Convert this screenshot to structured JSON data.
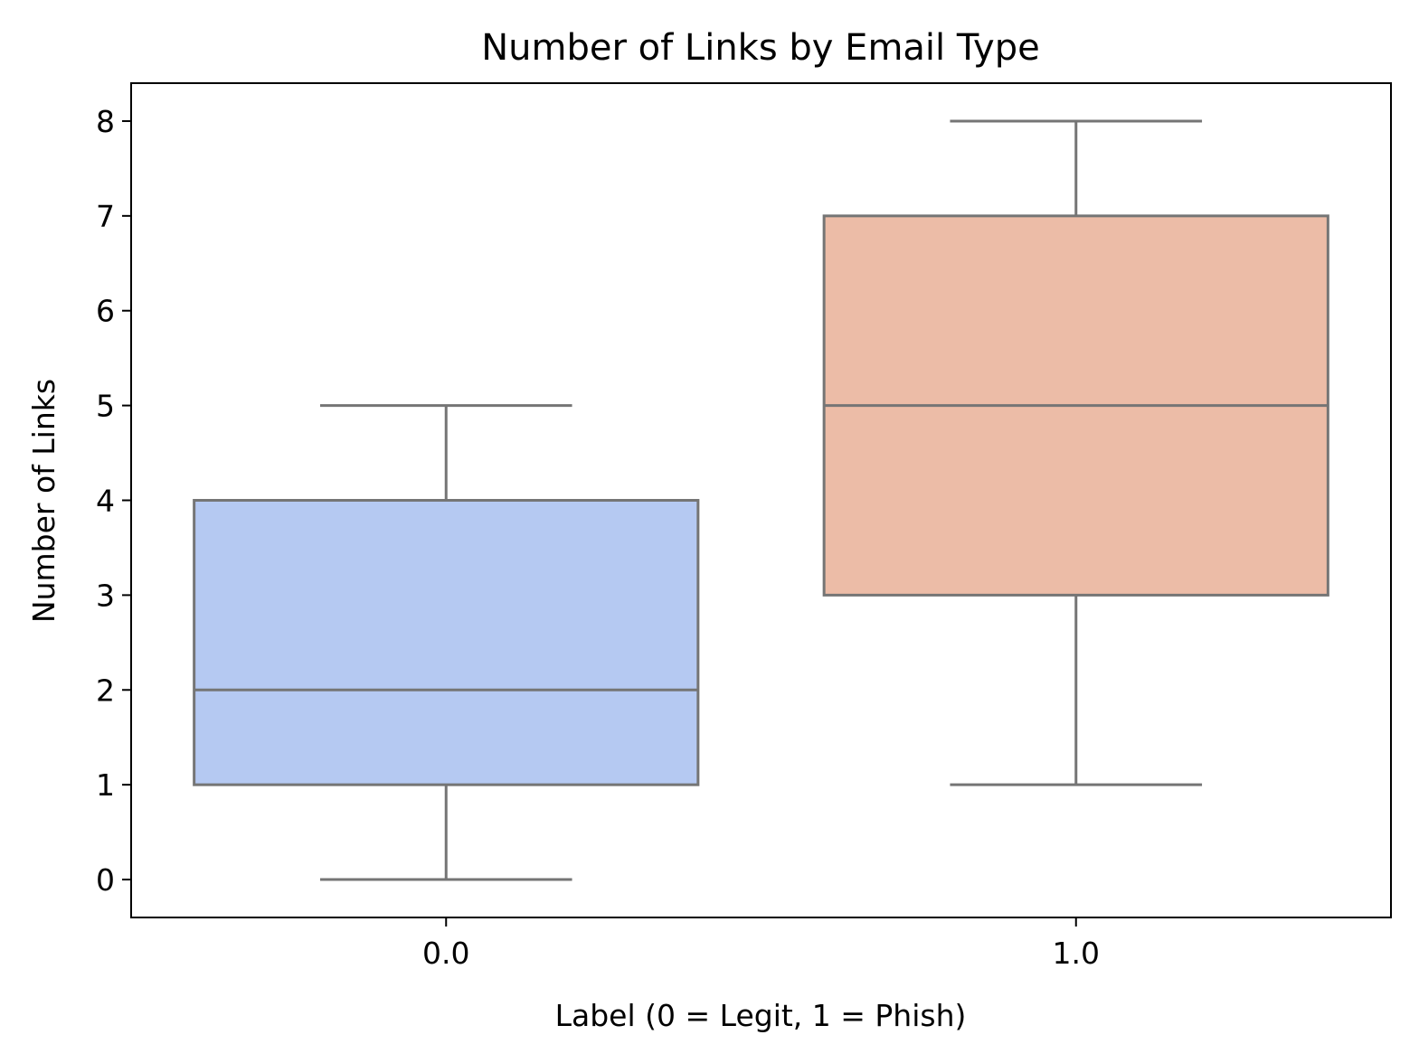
{
  "chart_data": {
    "type": "box",
    "title": "Number of Links by Email Type",
    "xlabel": "Label (0 = Legit, 1 = Phish)",
    "ylabel": "Number of Links",
    "categories": [
      "0.0",
      "1.0"
    ],
    "boxes": [
      {
        "category": "0.0",
        "whisker_low": 0,
        "q1": 1,
        "median": 2,
        "q3": 4,
        "whisker_high": 5,
        "color": "#b5c9f2"
      },
      {
        "category": "1.0",
        "whisker_low": 1,
        "q1": 3,
        "median": 5,
        "q3": 7,
        "whisker_high": 8,
        "color": "#ecbca7"
      }
    ],
    "yticks": [
      "0",
      "1",
      "2",
      "3",
      "4",
      "5",
      "6",
      "7",
      "8"
    ],
    "ylim": [
      -0.4,
      8.4
    ],
    "grid": false,
    "line_color": "#757575"
  }
}
